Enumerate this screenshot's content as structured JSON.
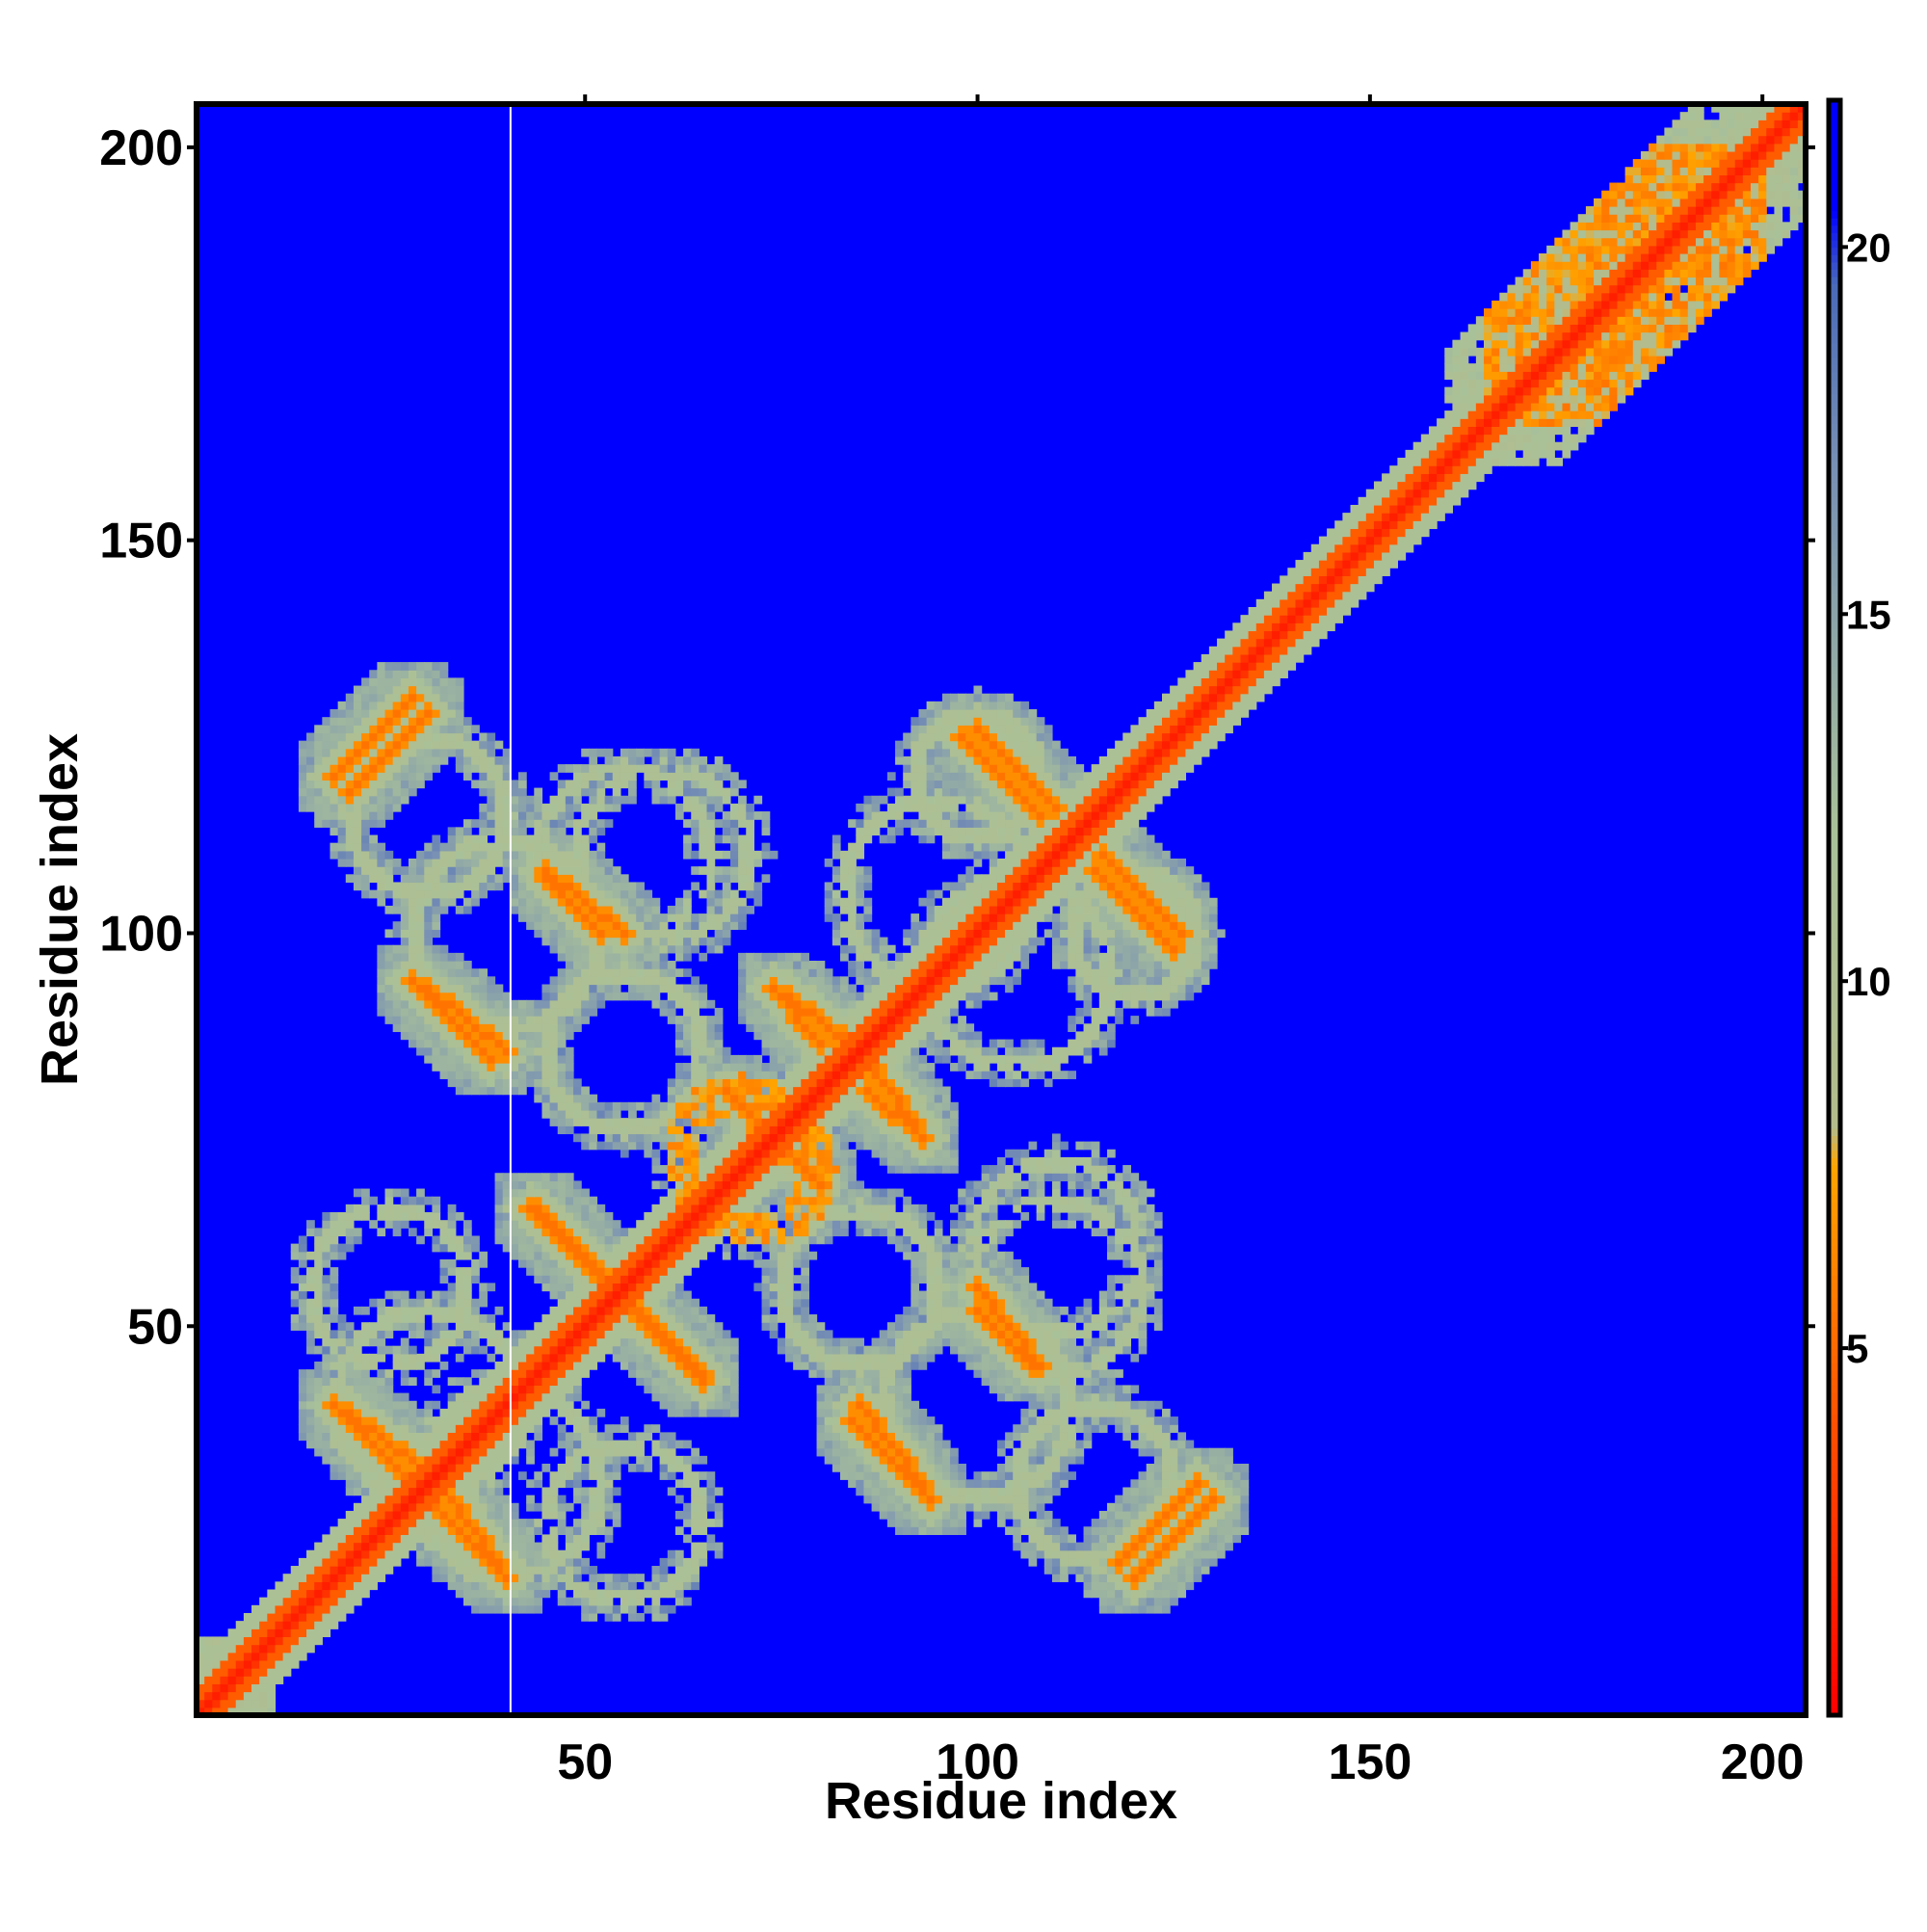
{
  "chart_data": {
    "type": "heatmap",
    "title": "",
    "xlabel": "Residue index",
    "ylabel": "Residue index",
    "n_residues": 205,
    "xlim": [
      1,
      205
    ],
    "ylim": [
      1,
      205
    ],
    "x_ticks": [
      50,
      100,
      150,
      200
    ],
    "y_ticks": [
      50,
      100,
      150,
      200
    ],
    "x_tick_labels": [
      "50",
      "100",
      "150",
      "200"
    ],
    "y_tick_labels": [
      "50",
      "100",
      "150",
      "200"
    ],
    "colorbar": {
      "range": [
        0,
        22
      ],
      "ticks": [
        5,
        10,
        15,
        20
      ],
      "tick_labels": [
        "5",
        "10",
        "15",
        "20"
      ],
      "stops": [
        {
          "value": 0,
          "color": "#ff0000"
        },
        {
          "value": 4,
          "color": "#ff5000"
        },
        {
          "value": 7.5,
          "color": "#ffa500"
        },
        {
          "value": 8,
          "color": "#b4bc8c"
        },
        {
          "value": 12,
          "color": "#a9c199"
        },
        {
          "value": 17,
          "color": "#7890b4"
        },
        {
          "value": 19.5,
          "color": "#4a6ab8"
        },
        {
          "value": 20.5,
          "color": "#0000ff"
        },
        {
          "value": 22,
          "color": "#0000ff"
        }
      ]
    },
    "background_value": 22,
    "background_color": "#0000ff",
    "diagonal": {
      "core_value": 1.5,
      "near_value": 4.5,
      "halo_value": 11
    },
    "separator_column": 40,
    "features": [
      {
        "kind": "block",
        "range": [
          1,
          10
        ],
        "value": 11
      },
      {
        "kind": "block",
        "range": [
          160,
          205
        ],
        "value": 11
      },
      {
        "kind": "block",
        "range": [
          165,
          200
        ],
        "value": 7
      },
      {
        "kind": "anti_strand",
        "from": [
          18,
          40
        ],
        "to": [
          28,
          33
        ],
        "value": 6.5
      },
      {
        "kind": "anti_strand",
        "from": [
          18,
          120
        ],
        "to": [
          28,
          130
        ],
        "value": 6.5
      },
      {
        "kind": "anti_strand",
        "from": [
          28,
          94
        ],
        "to": [
          38,
          84
        ],
        "value": 6.5
      },
      {
        "kind": "anti_strand",
        "from": [
          30,
          28
        ],
        "to": [
          38,
          20
        ],
        "value": 6.5
      },
      {
        "kind": "anti_strand",
        "from": [
          44,
          65
        ],
        "to": [
          54,
          55
        ],
        "value": 6.5
      },
      {
        "kind": "anti_strand",
        "from": [
          45,
          107
        ],
        "to": [
          52,
          100
        ],
        "value": 6.5
      },
      {
        "kind": "anti_strand",
        "from": [
          55,
          53
        ],
        "to": [
          65,
          43
        ],
        "value": 6.5
      },
      {
        "kind": "anti_strand",
        "from": [
          68,
          80
        ],
        "to": [
          75,
          72
        ],
        "value": 6.5
      },
      {
        "kind": "anti_strand",
        "from": [
          74,
          93
        ],
        "to": [
          80,
          86
        ],
        "value": 6.5
      },
      {
        "kind": "anti_strand",
        "from": [
          85,
          40
        ],
        "to": [
          93,
          30
        ],
        "value": 6.5
      },
      {
        "kind": "anti_strand",
        "from": [
          85,
          85
        ],
        "to": [
          92,
          76
        ],
        "value": 6.5
      },
      {
        "kind": "anti_strand",
        "from": [
          100,
          126
        ],
        "to": [
          110,
          116
        ],
        "value": 6.5
      },
      {
        "kind": "anti_strand",
        "from": [
          100,
          55
        ],
        "to": [
          108,
          45
        ],
        "value": 6.5
      },
      {
        "kind": "anti_strand",
        "from": [
          115,
          108
        ],
        "to": [
          125,
          98
        ],
        "value": 6.5
      },
      {
        "kind": "anti_strand",
        "from": [
          118,
          20
        ],
        "to": [
          128,
          30
        ],
        "value": 6.5
      },
      {
        "kind": "ring",
        "center": [
          72,
          70
        ],
        "radius": 9,
        "value": 7
      },
      {
        "kind": "ring",
        "center": [
          40,
          100
        ],
        "radius": 12,
        "value": 11
      },
      {
        "kind": "ring",
        "center": [
          40,
          30
        ],
        "radius": 12,
        "value": 11
      },
      {
        "kind": "ring",
        "center": [
          105,
          95
        ],
        "radius": 12,
        "value": 11
      },
      {
        "kind": "ring",
        "center": [
          100,
          40
        ],
        "radius": 12,
        "value": 11
      },
      {
        "kind": "ring",
        "center": [
          110,
          60
        ],
        "radius": 11,
        "value": 11
      },
      {
        "kind": "ring",
        "center": [
          55,
          110
        ],
        "radius": 11,
        "value": 11
      },
      {
        "kind": "ring",
        "center": [
          25,
          55
        ],
        "radius": 10,
        "value": 11
      },
      {
        "kind": "ring",
        "center": [
          85,
          55
        ],
        "radius": 10,
        "value": 11
      },
      {
        "kind": "ring",
        "center": [
          55,
          85
        ],
        "radius": 10,
        "value": 11
      },
      {
        "kind": "ring",
        "center": [
          30,
          115
        ],
        "radius": 10,
        "value": 11
      },
      {
        "kind": "ring",
        "center": [
          115,
          30
        ],
        "radius": 10,
        "value": 11
      },
      {
        "kind": "ring",
        "center": [
          120,
          100
        ],
        "radius": 8,
        "value": 11
      },
      {
        "kind": "ring",
        "center": [
          100,
          120
        ],
        "radius": 8,
        "value": 11
      }
    ]
  }
}
